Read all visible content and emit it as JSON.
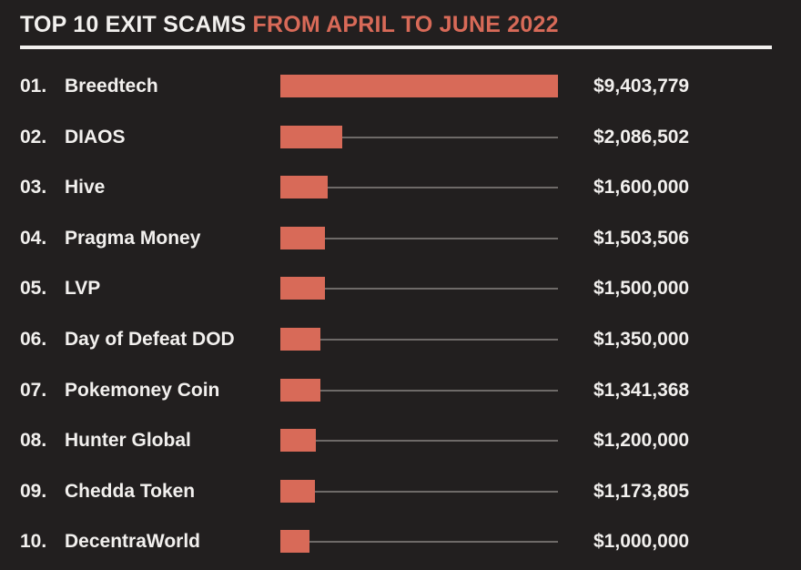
{
  "title": {
    "part1": "TOP 10 EXIT SCAMS ",
    "part2": "FROM APRIL TO JUNE 2022"
  },
  "colors": {
    "background": "#221f1f",
    "bar": "#d86a58",
    "accent": "#d86a58",
    "text": "#f2f0ee",
    "track": "#6e6a68"
  },
  "chart_data": {
    "type": "bar",
    "orientation": "horizontal",
    "title": "TOP 10 EXIT SCAMS FROM APRIL TO JUNE 2022",
    "ranks": [
      "01.",
      "02.",
      "03.",
      "04.",
      "05.",
      "06.",
      "07.",
      "08.",
      "09.",
      "10."
    ],
    "categories": [
      "Breedtech",
      "DIAOS",
      "Hive",
      "Pragma Money",
      "LVP",
      "Day of Defeat DOD",
      "Pokemoney Coin",
      "Hunter Global",
      "Chedda Token",
      "DecentraWorld"
    ],
    "values": [
      9403779,
      2086502,
      1600000,
      1503506,
      1500000,
      1350000,
      1341368,
      1200000,
      1173805,
      1000000
    ],
    "value_labels": [
      "$9,403,779",
      "$2,086,502",
      "$1,600,000",
      "$1,503,506",
      "$1,500,000",
      "$1,350,000",
      "$1,341,368",
      "$1,200,000",
      "$1,173,805",
      "$1,000,000"
    ],
    "xlim": [
      0,
      9403779
    ],
    "grid": false,
    "legend": "none"
  }
}
